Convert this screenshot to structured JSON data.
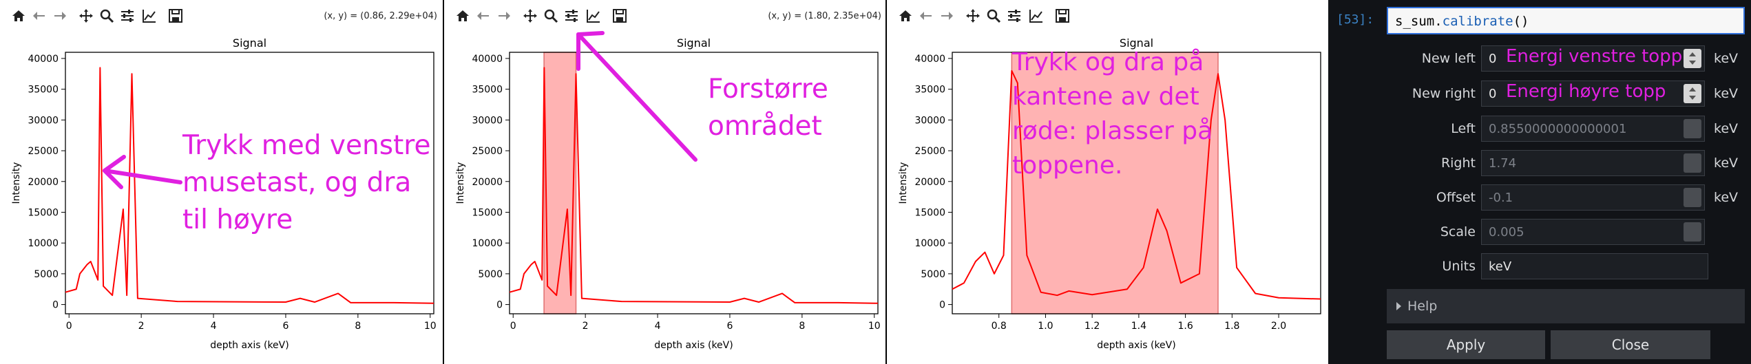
{
  "panels": [
    {
      "coords": "(x, y) = (0.86, 2.29e+04)",
      "title": "Signal",
      "xlabel": "depth axis (keV)",
      "ylabel": "Intensity",
      "xticks": [
        "0",
        "2",
        "4",
        "6",
        "8",
        "10"
      ],
      "yticks": [
        "0",
        "5000",
        "10000",
        "15000",
        "20000",
        "25000",
        "30000",
        "35000",
        "40000"
      ],
      "annotation": [
        "Trykk med venstre",
        "musetast, og dra",
        "til høyre"
      ]
    },
    {
      "coords": "(x, y) = (1.80, 2.35e+04)",
      "title": "Signal",
      "xlabel": "depth axis (keV)",
      "ylabel": "Intensity",
      "xticks": [
        "0",
        "2",
        "4",
        "6",
        "8",
        "10"
      ],
      "yticks": [
        "0",
        "5000",
        "10000",
        "15000",
        "20000",
        "25000",
        "30000",
        "35000",
        "40000"
      ],
      "annotation": [
        "Forstørre",
        "området"
      ]
    },
    {
      "title": "Signal",
      "xlabel": "depth axis (keV)",
      "ylabel": "Intensity",
      "xticks": [
        "0.8",
        "1.0",
        "1.2",
        "1.4",
        "1.6",
        "1.8",
        "2.0"
      ],
      "yticks": [
        "0",
        "5000",
        "10000",
        "15000",
        "20000",
        "25000",
        "30000",
        "35000",
        "40000"
      ],
      "annotation": [
        "Trykk og dra på",
        "kantene av det",
        "røde: plasser på",
        "toppene."
      ]
    }
  ],
  "toolbar_icons": [
    "home-icon",
    "back-arrow-icon",
    "forward-arrow-icon",
    "pan-icon",
    "zoom-icon",
    "configure-subplots-icon",
    "edit-axis-icon",
    "save-icon"
  ],
  "colors": {
    "line": "#ff0000",
    "span": "#ffb3b3",
    "annotation": "#e020e0",
    "dark_bg": "#111317"
  },
  "calibrate": {
    "prompt": "[53]:",
    "code_obj": "s_sum.",
    "code_fn": "calibrate",
    "code_args": "()",
    "fields": [
      {
        "label": "New left",
        "value": "0",
        "hint": "Energi venstre topp",
        "unit": "keV"
      },
      {
        "label": "New right",
        "value": "0",
        "hint": "Energi høyre topp",
        "unit": "keV"
      },
      {
        "label": "Left",
        "value": "0.8550000000000001",
        "unit": "keV"
      },
      {
        "label": "Right",
        "value": "1.74",
        "unit": "keV"
      },
      {
        "label": "Offset",
        "value": "-0.1",
        "unit": "keV"
      },
      {
        "label": "Scale",
        "value": "0.005",
        "unit": ""
      },
      {
        "label": "Units",
        "value": "keV"
      }
    ],
    "help_label": "Help",
    "apply_label": "Apply",
    "close_label": "Close"
  },
  "chart_data": [
    {
      "type": "line",
      "title": "Signal",
      "xlabel": "depth axis (keV)",
      "ylabel": "Intensity",
      "xlim": [
        -0.1,
        10.1
      ],
      "ylim": [
        -1500,
        41000
      ],
      "series": [
        {
          "x": [
            -0.1,
            0.2,
            0.3,
            0.5,
            0.6,
            0.8,
            0.86,
            0.95,
            1.2,
            1.5,
            1.6,
            1.74,
            1.9,
            3,
            6,
            6.4,
            6.8,
            7.45,
            7.8,
            9,
            10.1
          ],
          "y": [
            2000,
            2500,
            5000,
            6500,
            7000,
            4000,
            38500,
            3000,
            1500,
            15500,
            1500,
            37500,
            1000,
            500,
            400,
            1000,
            400,
            1800,
            300,
            300,
            200
          ]
        }
      ]
    },
    {
      "type": "line",
      "title": "Signal",
      "xlabel": "depth axis (keV)",
      "ylabel": "Intensity",
      "xlim": [
        -0.1,
        10.1
      ],
      "ylim": [
        -1500,
        41000
      ],
      "span": [
        0.855,
        1.74
      ],
      "series": [
        {
          "x": [
            -0.1,
            0.2,
            0.3,
            0.5,
            0.6,
            0.8,
            0.86,
            0.95,
            1.2,
            1.5,
            1.6,
            1.74,
            1.9,
            3,
            6,
            6.4,
            6.8,
            7.45,
            7.8,
            9,
            10.1
          ],
          "y": [
            2000,
            2500,
            5000,
            6500,
            7000,
            4000,
            38500,
            3000,
            1500,
            15500,
            1500,
            37500,
            1000,
            500,
            400,
            1000,
            400,
            1800,
            300,
            300,
            200
          ]
        }
      ]
    },
    {
      "type": "line",
      "title": "Signal",
      "xlabel": "depth axis (keV)",
      "ylabel": "Intensity",
      "xlim": [
        0.6,
        2.18
      ],
      "ylim": [
        -1500,
        41000
      ],
      "span": [
        0.855,
        1.74
      ],
      "series": [
        {
          "x": [
            0.6,
            0.65,
            0.7,
            0.74,
            0.78,
            0.82,
            0.855,
            0.88,
            0.92,
            0.98,
            1.05,
            1.1,
            1.2,
            1.35,
            1.42,
            1.48,
            1.52,
            1.58,
            1.66,
            1.71,
            1.74,
            1.77,
            1.82,
            1.9,
            2.0,
            2.18
          ],
          "y": [
            2500,
            3500,
            7000,
            8500,
            5000,
            8000,
            38000,
            36000,
            8000,
            2000,
            1500,
            2200,
            1600,
            2500,
            6000,
            15500,
            12000,
            3500,
            5000,
            30000,
            37500,
            30000,
            6000,
            1800,
            1100,
            900
          ]
        }
      ]
    }
  ]
}
